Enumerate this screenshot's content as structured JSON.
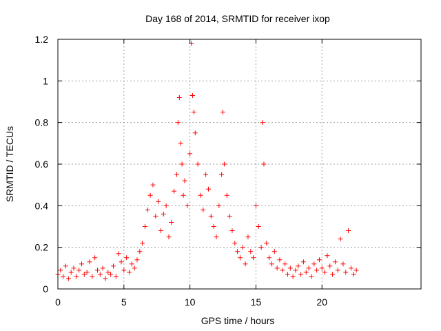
{
  "chart_data": {
    "type": "scatter",
    "title": "Day 168 of 2014, SRMTID for receiver ixop",
    "xlabel": "GPS time / hours",
    "ylabel": "SRMTID / TECUs",
    "xlim": [
      0,
      27.5
    ],
    "ylim": [
      0,
      1.2
    ],
    "xticks": [
      0,
      5,
      10,
      15,
      20
    ],
    "xtick_labels": [
      "0",
      "5",
      "10",
      "15",
      "20"
    ],
    "yticks": [
      0,
      0.2,
      0.4,
      0.6,
      0.8,
      1,
      1.2
    ],
    "ytick_labels": [
      "0",
      "0.2",
      "0.4",
      "0.6",
      "0.8",
      "1",
      "1.2"
    ],
    "grid": true,
    "marker": "+",
    "color": "#ff0000",
    "series": [
      {
        "name": "SRMTID",
        "x": [
          0.0,
          0.2,
          0.4,
          0.6,
          0.8,
          1.0,
          1.2,
          1.4,
          1.6,
          1.8,
          2.0,
          2.2,
          2.4,
          2.6,
          2.8,
          3.0,
          3.2,
          3.4,
          3.6,
          3.8,
          4.0,
          4.2,
          4.4,
          4.6,
          4.8,
          5.0,
          5.2,
          5.4,
          5.6,
          5.8,
          6.0,
          6.2,
          6.4,
          6.6,
          6.8,
          7.0,
          7.2,
          7.4,
          7.6,
          7.8,
          8.0,
          8.2,
          8.4,
          8.6,
          8.8,
          9.0,
          9.1,
          9.2,
          9.3,
          9.4,
          9.5,
          9.6,
          9.8,
          10.0,
          10.1,
          10.2,
          10.3,
          10.4,
          10.6,
          10.8,
          11.0,
          11.2,
          11.4,
          11.6,
          11.8,
          12.0,
          12.2,
          12.4,
          12.5,
          12.6,
          12.8,
          13.0,
          13.2,
          13.4,
          13.6,
          13.8,
          14.0,
          14.2,
          14.4,
          14.6,
          14.8,
          15.0,
          15.2,
          15.4,
          15.5,
          15.6,
          15.8,
          16.0,
          16.2,
          16.4,
          16.6,
          16.8,
          17.0,
          17.2,
          17.4,
          17.6,
          17.8,
          18.0,
          18.2,
          18.4,
          18.6,
          18.8,
          19.0,
          19.2,
          19.4,
          19.6,
          19.8,
          20.0,
          20.2,
          20.4,
          20.6,
          20.8,
          21.0,
          21.2,
          21.4,
          21.6,
          21.8,
          22.0,
          22.2,
          22.4,
          22.6
        ],
        "y": [
          0.07,
          0.09,
          0.06,
          0.11,
          0.05,
          0.08,
          0.1,
          0.06,
          0.09,
          0.12,
          0.07,
          0.08,
          0.13,
          0.06,
          0.15,
          0.09,
          0.07,
          0.1,
          0.05,
          0.08,
          0.07,
          0.11,
          0.06,
          0.17,
          0.13,
          0.09,
          0.15,
          0.08,
          0.12,
          0.1,
          0.14,
          0.18,
          0.22,
          0.3,
          0.38,
          0.45,
          0.5,
          0.35,
          0.42,
          0.28,
          0.36,
          0.4,
          0.25,
          0.32,
          0.47,
          0.55,
          0.8,
          0.92,
          0.7,
          0.6,
          0.45,
          0.52,
          0.4,
          0.65,
          1.18,
          0.93,
          0.85,
          0.75,
          0.6,
          0.45,
          0.38,
          0.55,
          0.48,
          0.35,
          0.3,
          0.25,
          0.4,
          0.55,
          0.85,
          0.6,
          0.45,
          0.35,
          0.28,
          0.22,
          0.18,
          0.15,
          0.2,
          0.12,
          0.25,
          0.18,
          0.15,
          0.4,
          0.3,
          0.2,
          0.8,
          0.6,
          0.22,
          0.15,
          0.12,
          0.18,
          0.1,
          0.14,
          0.09,
          0.12,
          0.07,
          0.1,
          0.06,
          0.09,
          0.11,
          0.07,
          0.13,
          0.08,
          0.1,
          0.06,
          0.12,
          0.09,
          0.14,
          0.1,
          0.08,
          0.16,
          0.11,
          0.07,
          0.13,
          0.09,
          0.24,
          0.12,
          0.08,
          0.28,
          0.1,
          0.07,
          0.09
        ]
      }
    ]
  }
}
